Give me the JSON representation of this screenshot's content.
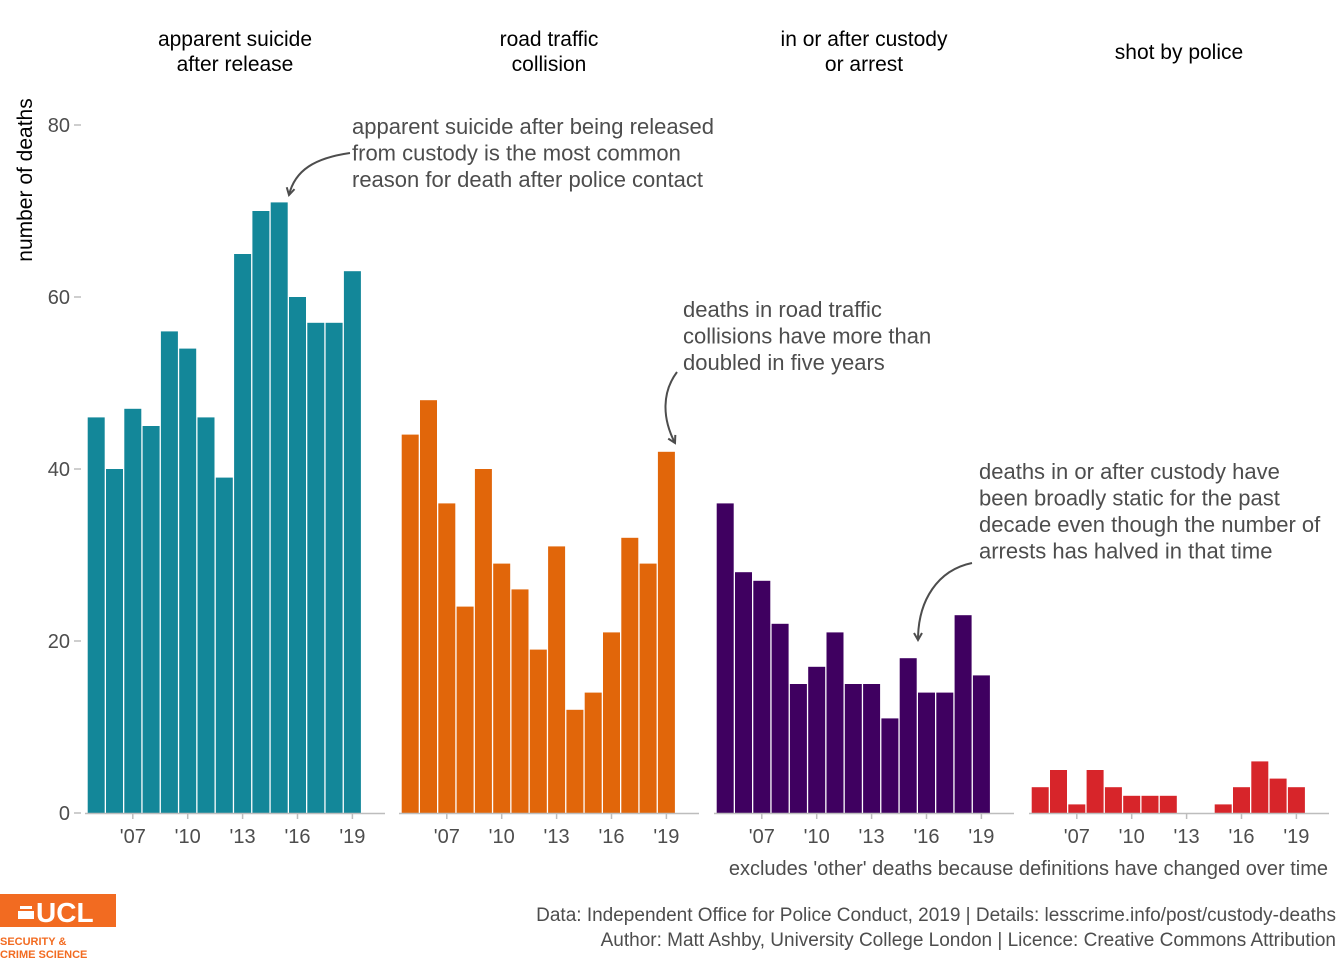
{
  "chart_data": {
    "type": "bar",
    "ylabel": "number of deaths",
    "ylim": [
      0,
      80
    ],
    "y_ticks": [
      "0",
      "20",
      "40",
      "60",
      "80"
    ],
    "x_tick_labels": [
      "'07",
      "'10",
      "'13",
      "'16",
      "'19"
    ],
    "x_tick_years": [
      2007,
      2010,
      2013,
      2016,
      2019
    ],
    "years": [
      2005,
      2006,
      2007,
      2008,
      2009,
      2010,
      2011,
      2012,
      2013,
      2014,
      2015,
      2016,
      2017,
      2018,
      2019
    ],
    "grid": false,
    "legend": "none",
    "facets": [
      {
        "title": [
          "apparent suicide",
          "after release"
        ],
        "color": "#138799",
        "values": [
          46,
          40,
          47,
          45,
          56,
          54,
          46,
          39,
          65,
          70,
          71,
          60,
          57,
          57,
          63
        ]
      },
      {
        "title": [
          "road traffic",
          "collision"
        ],
        "color": "#e1660a",
        "values": [
          44,
          48,
          36,
          24,
          40,
          29,
          26,
          19,
          31,
          12,
          14,
          21,
          32,
          29,
          42
        ]
      },
      {
        "title": [
          "in or after custody",
          "or arrest"
        ],
        "color": "#3f0060",
        "values": [
          36,
          28,
          27,
          22,
          15,
          17,
          21,
          15,
          15,
          11,
          18,
          14,
          14,
          23,
          16
        ]
      },
      {
        "title": [
          "shot by police"
        ],
        "color": "#d7252a",
        "values": [
          3,
          5,
          1,
          5,
          3,
          2,
          2,
          2,
          0,
          0,
          1,
          3,
          6,
          4,
          3
        ]
      }
    ],
    "annotations": [
      {
        "facet": 0,
        "lines": [
          "apparent suicide after being released",
          "from custody is the most common",
          "reason for death after police contact"
        ]
      },
      {
        "facet": 1,
        "lines": [
          "deaths in road traffic",
          "collisions have more than",
          "doubled in five years"
        ]
      },
      {
        "facet": 2,
        "lines": [
          "deaths in or after custody have",
          "been broadly static for the past",
          "decade even though the number of",
          "arrests has halved in that time"
        ]
      }
    ],
    "note": "excludes 'other' deaths because definitions have changed over time"
  },
  "caption": {
    "line1": "Data: Independent Office for Police Conduct, 2019 |  Details: lesscrime.info/post/custody-deaths",
    "line2": "Author: Matt Ashby, University College London |  Licence: Creative Commons Attribution"
  },
  "logo": {
    "text": "UCL",
    "subtitle_line1": "SECURITY &",
    "subtitle_line2": "CRIME SCIENCE",
    "color": "#f26b21"
  }
}
